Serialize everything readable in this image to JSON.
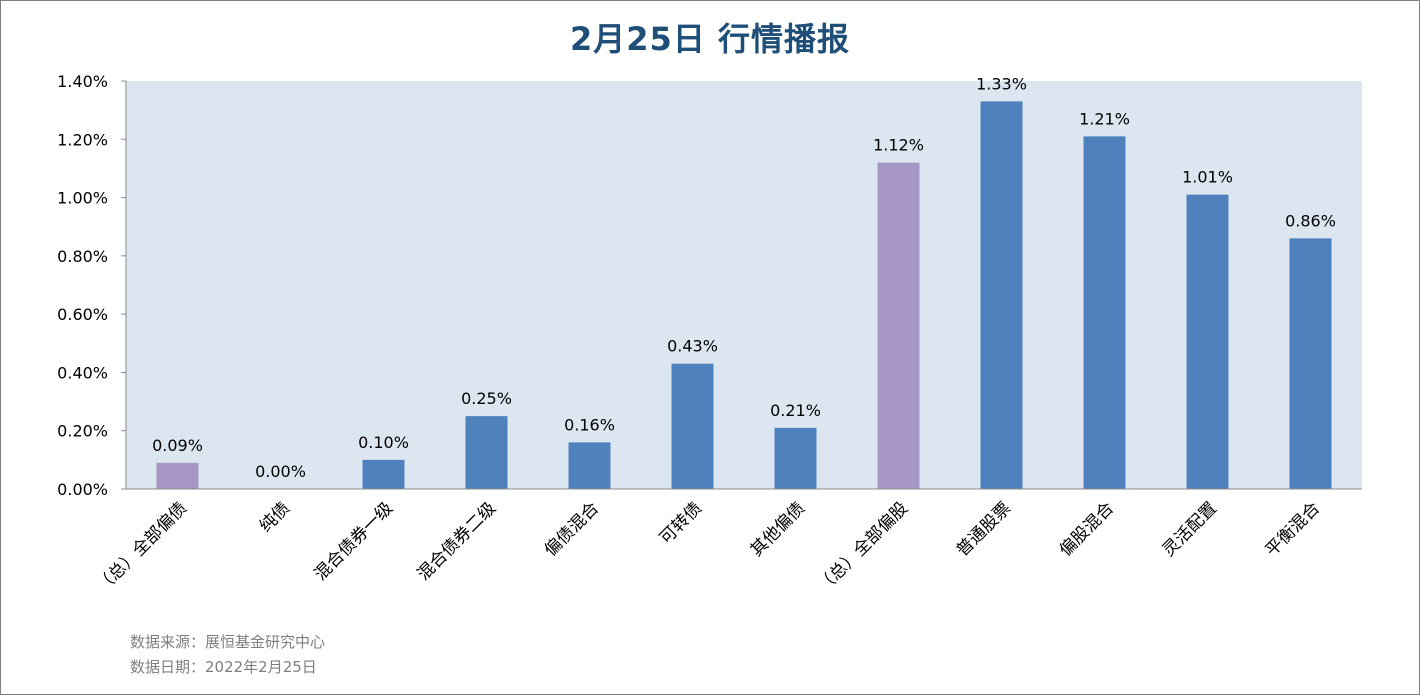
{
  "title": "2月25日  行情播报",
  "footer": {
    "source": "数据来源：展恒基金研究中心",
    "date": "数据日期：2022年2月25日"
  },
  "colors": {
    "plot_bg": "#dce6f1",
    "bar_primary": "#4f81bd",
    "bar_summary": "#a696c4",
    "title": "#1f4e79"
  },
  "chart_data": {
    "type": "bar",
    "title": "2月25日  行情播报",
    "xlabel": "",
    "ylabel": "",
    "ylim": [
      0,
      1.4
    ],
    "yticks": [
      "0.00%",
      "0.20%",
      "0.40%",
      "0.60%",
      "0.80%",
      "1.00%",
      "1.20%",
      "1.40%"
    ],
    "ytick_values": [
      0,
      0.2,
      0.4,
      0.6,
      0.8,
      1.0,
      1.2,
      1.4
    ],
    "grid": false,
    "categories": [
      "（总）全部偏债",
      "纯债",
      "混合债券一级",
      "混合债券二级",
      "偏债混合",
      "可转债",
      "其他偏债",
      "（总）全部偏股",
      "普通股票",
      "偏股混合",
      "灵活配置",
      "平衡混合"
    ],
    "values": [
      0.09,
      0.0,
      0.1,
      0.25,
      0.16,
      0.43,
      0.21,
      1.12,
      1.33,
      1.21,
      1.01,
      0.86
    ],
    "data_labels": [
      "0.09%",
      "0.00%",
      "0.10%",
      "0.25%",
      "0.16%",
      "0.43%",
      "0.21%",
      "1.12%",
      "1.33%",
      "1.21%",
      "1.01%",
      "0.86%"
    ],
    "highlight": [
      true,
      false,
      false,
      false,
      false,
      false,
      false,
      true,
      false,
      false,
      false,
      false
    ]
  }
}
